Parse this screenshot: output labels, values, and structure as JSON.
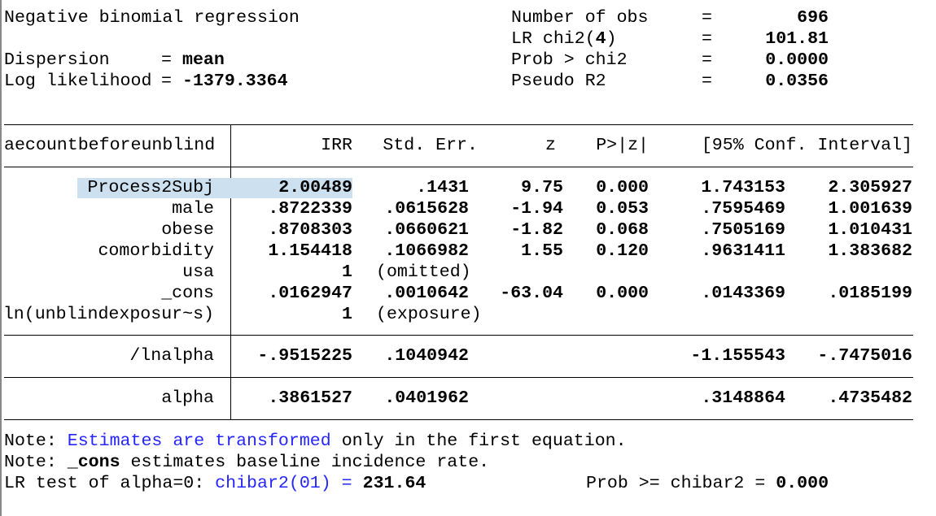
{
  "header": {
    "title": "Negative binomial regression",
    "dispersion_label": "Dispersion",
    "dispersion_value": "mean",
    "loglik_label": "Log likelihood",
    "loglik_value": "-1379.3364",
    "stats": [
      {
        "label": "Number of obs",
        "value": "696"
      },
      {
        "label": "LR chi2(",
        "df": "4",
        "label_end": ")",
        "value": "101.81"
      },
      {
        "label": "Prob > chi2",
        "value": "0.0000"
      },
      {
        "label": "Pseudo R2",
        "value": "0.0356"
      }
    ]
  },
  "table": {
    "depvar": "aecountbeforeunblind",
    "columns": [
      "IRR",
      "Std. Err.",
      "z",
      "P>|z|",
      "[95% Conf. Interval]"
    ],
    "selected_row": "Process2Subj",
    "highlight_color": "#cce0f0",
    "rows": [
      {
        "name": "Process2Subj",
        "irr": "2.00489",
        "se": ".1431",
        "z": "9.75",
        "p": "0.000",
        "lo": "1.743153",
        "hi": "2.305927"
      },
      {
        "name": "male",
        "irr": ".8722339",
        "se": ".0615628",
        "z": "-1.94",
        "p": "0.053",
        "lo": ".7595469",
        "hi": "1.001639"
      },
      {
        "name": "obese",
        "irr": ".8708303",
        "se": ".0660621",
        "z": "-1.82",
        "p": "0.068",
        "lo": ".7505169",
        "hi": "1.010431"
      },
      {
        "name": "comorbidity",
        "irr": "1.154418",
        "se": ".1066982",
        "z": "1.55",
        "p": "0.120",
        "lo": ".9631411",
        "hi": "1.383682"
      },
      {
        "name": "usa",
        "irr": "1",
        "note": "(omitted)"
      },
      {
        "name": "_cons",
        "irr": ".0162947",
        "se": ".0010642",
        "z": "-63.04",
        "p": "0.000",
        "lo": ".0143369",
        "hi": ".0185199"
      },
      {
        "name": "ln(unblindexposur~s)",
        "irr": "1",
        "note": "(exposure)"
      }
    ],
    "lnalpha": {
      "name": "/lnalpha",
      "irr": "-.9515225",
      "se": ".1040942",
      "lo": "-1.155543",
      "hi": "-.7475016"
    },
    "alpha": {
      "name": "alpha",
      "irr": ".3861527",
      "se": ".0401962",
      "lo": ".3148864",
      "hi": ".4735482"
    }
  },
  "notes": {
    "n1_prefix": "Note: ",
    "n1_link": "Estimates are transformed",
    "n1_rest": " only in the first equation.",
    "n2_prefix": "Note: ",
    "n2_bold": "_cons",
    "n2_rest": " estimates baseline incidence rate.",
    "lr_prefix": "LR test of alpha=0: ",
    "lr_link": "chibar2(01) =",
    "lr_value": "231.64",
    "prob_label": "Prob >= chibar2 = ",
    "prob_value": "0.000"
  },
  "colors": {
    "link": "#2626ff"
  }
}
